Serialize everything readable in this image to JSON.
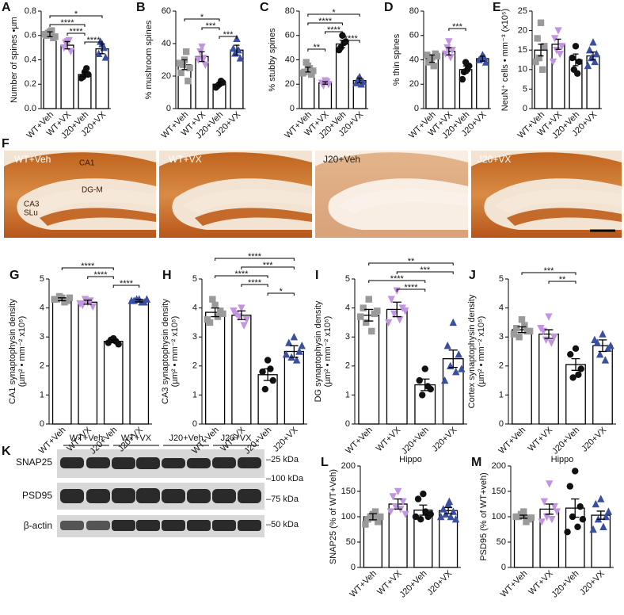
{
  "style": {
    "colors": [
      "#9a9a9a",
      "#c394e0",
      "#111111",
      "#3a4fa0"
    ],
    "markers": [
      "square",
      "triangle-down",
      "circle",
      "triangle"
    ]
  },
  "chart_data": [
    {
      "type": "bar",
      "panel": "A",
      "ylabel": [
        "Number of spines •µm"
      ],
      "categories": [
        "WT+Veh",
        "WT+VX",
        "J20+Veh",
        "J20+VX"
      ],
      "values": [
        0.61,
        0.52,
        0.28,
        0.49
      ],
      "errors": [
        0.02,
        0.03,
        0.02,
        0.04
      ],
      "points": [
        [
          0.63,
          0.6,
          0.58,
          0.62,
          0.64,
          0.61,
          0.59
        ],
        [
          0.55,
          0.5,
          0.47,
          0.54,
          0.56
        ],
        [
          0.3,
          0.25,
          0.28,
          0.26,
          0.33
        ],
        [
          0.53,
          0.45,
          0.42,
          0.55,
          0.5
        ]
      ],
      "ylim": [
        0,
        0.8
      ],
      "yticks": [
        {
          "value": 0,
          "label": "0.0"
        },
        0.2,
        0.4,
        0.6,
        0.8
      ],
      "brackets": [
        {
          "between": [
            0,
            3
          ],
          "label": "*"
        },
        {
          "between": [
            0,
            2
          ],
          "label": "****"
        },
        {
          "between": [
            1,
            2
          ],
          "label": "****"
        },
        {
          "between": [
            2,
            3
          ],
          "label": "****"
        }
      ]
    },
    {
      "type": "bar",
      "panel": "B",
      "ylabel": [
        "% mushroom spines"
      ],
      "categories": [
        "WT+Veh",
        "WT+VX",
        "J20+Veh",
        "J20+VX"
      ],
      "values": [
        27,
        32,
        15,
        36
      ],
      "errors": [
        3,
        3,
        1,
        3
      ],
      "points": [
        [
          30,
          22,
          17,
          27,
          35,
          28,
          25
        ],
        [
          38,
          30,
          27,
          35,
          31
        ],
        [
          15,
          13,
          16,
          14,
          17
        ],
        [
          43,
          37,
          31,
          34,
          36
        ]
      ],
      "ylim": [
        0,
        60
      ],
      "yticks": [
        0,
        20,
        40,
        60
      ],
      "brackets": [
        {
          "between": [
            0,
            2
          ],
          "label": "*"
        },
        {
          "between": [
            1,
            2
          ],
          "label": "***"
        },
        {
          "between": [
            2,
            3
          ],
          "label": "***"
        }
      ]
    },
    {
      "type": "bar",
      "panel": "C",
      "ylabel": [
        "% stubby spines"
      ],
      "categories": [
        "WT+Veh",
        "WT+VX",
        "J20+Veh",
        "J20+VX"
      ],
      "values": [
        32,
        21,
        53,
        23
      ],
      "errors": [
        2,
        1,
        3,
        2
      ],
      "points": [
        [
          35,
          30,
          28,
          38,
          33,
          29,
          31
        ],
        [
          23,
          21,
          20,
          19,
          22
        ],
        [
          60,
          48,
          55,
          50,
          54
        ],
        [
          26,
          21,
          22,
          24,
          20
        ]
      ],
      "ylim": [
        0,
        80
      ],
      "yticks": [
        0,
        20,
        40,
        60,
        80
      ],
      "brackets": [
        {
          "between": [
            0,
            3
          ],
          "label": "*"
        },
        {
          "between": [
            0,
            2
          ],
          "label": "****"
        },
        {
          "between": [
            1,
            2
          ],
          "label": "****"
        },
        {
          "between": [
            2,
            3
          ],
          "label": "****"
        },
        {
          "between": [
            0,
            1
          ],
          "label": "**"
        }
      ]
    },
    {
      "type": "bar",
      "panel": "D",
      "ylabel": [
        "% thin spines"
      ],
      "categories": [
        "WT+Veh",
        "WT+VX",
        "J20+Veh",
        "J20+VX"
      ],
      "values": [
        41,
        47,
        32,
        41
      ],
      "errors": [
        3,
        3,
        3,
        2
      ],
      "points": [
        [
          42,
          38,
          45,
          40,
          35,
          44,
          43
        ],
        [
          55,
          45,
          48,
          50,
          42
        ],
        [
          38,
          24,
          35,
          30,
          32
        ],
        [
          44,
          40,
          38,
          41,
          42
        ]
      ],
      "ylim": [
        0,
        80
      ],
      "yticks": [
        0,
        20,
        40,
        60,
        80
      ],
      "brackets": [
        {
          "between": [
            1,
            2
          ],
          "label": "***"
        }
      ]
    },
    {
      "type": "bar",
      "panel": "E",
      "ylabel": [
        "NeuN⁺ cells • mm⁻³ (x10⁵)"
      ],
      "categories": [
        "WT+Veh",
        "WT+VX",
        "J20+Veh",
        "J20+VX"
      ],
      "values": [
        15,
        16.5,
        12.5,
        13.5
      ],
      "errors": [
        1.5,
        1.3,
        1.5,
        1
      ],
      "points": [
        [
          22,
          18,
          16,
          13,
          10,
          12
        ],
        [
          20,
          18,
          16,
          15,
          14,
          12
        ],
        [
          16,
          13,
          12,
          10,
          9
        ],
        [
          17,
          15,
          14,
          13,
          12,
          11
        ]
      ],
      "ylim": [
        0,
        25
      ],
      "yticks": [
        0,
        5,
        10,
        15,
        20,
        25
      ],
      "brackets": []
    },
    {
      "type": "bar",
      "panel": "G",
      "ylabel": [
        "CA1 synaptophysin density",
        "(µm² • mm⁻² x10⁵)"
      ],
      "categories": [
        "WT+Veh",
        "WT+VX",
        "J20+Veh",
        "J20+VX"
      ],
      "values": [
        4.3,
        4.2,
        2.85,
        4.25
      ],
      "errors": [
        0.05,
        0.07,
        0.05,
        0.04
      ],
      "points": [
        [
          4.35,
          4.3,
          4.25,
          4.4,
          4.2,
          4.3,
          4.35
        ],
        [
          4.2,
          4.1,
          4.05,
          4.3,
          4.25,
          4.15
        ],
        [
          2.95,
          2.8,
          2.75,
          2.9,
          2.85
        ],
        [
          4.3,
          4.25,
          4.2,
          4.3,
          4.2,
          4.25,
          4.3
        ]
      ],
      "ylim": [
        0,
        5
      ],
      "yticks": [
        0,
        1,
        2,
        3,
        4,
        5
      ],
      "brackets": [
        {
          "between": [
            0,
            2
          ],
          "label": "****"
        },
        {
          "between": [
            1,
            2
          ],
          "label": "****"
        },
        {
          "between": [
            2,
            3
          ],
          "label": "****"
        }
      ]
    },
    {
      "type": "bar",
      "panel": "H",
      "ylabel": [
        "CA3 synaptophysin density",
        "(µm² • mm⁻² x10⁵)"
      ],
      "categories": [
        "WT+Veh",
        "WT+VX",
        "J20+Veh",
        "J20+VX"
      ],
      "values": [
        3.85,
        3.75,
        1.7,
        2.5
      ],
      "errors": [
        0.15,
        0.15,
        0.2,
        0.2
      ],
      "points": [
        [
          4.1,
          3.5,
          3.9,
          4.3,
          3.7,
          3.6,
          3.8
        ],
        [
          4.0,
          3.8,
          3.6,
          3.7,
          3.4,
          3.9
        ],
        [
          2.2,
          1.8,
          1.5,
          1.2,
          1.9
        ],
        [
          3.0,
          2.8,
          2.5,
          2.3,
          2.2,
          2.4,
          2.7
        ]
      ],
      "ylim": [
        0,
        5
      ],
      "yticks": [
        0,
        1,
        2,
        3,
        4,
        5
      ],
      "brackets": [
        {
          "between": [
            0,
            3
          ],
          "label": "****"
        },
        {
          "between": [
            1,
            3
          ],
          "label": "***"
        },
        {
          "between": [
            0,
            2
          ],
          "label": "****"
        },
        {
          "between": [
            1,
            2
          ],
          "label": "****"
        },
        {
          "between": [
            2,
            3
          ],
          "label": "*"
        }
      ]
    },
    {
      "type": "bar",
      "panel": "I",
      "ylabel": [
        "DG synaptophysin density",
        "(µm² • mm⁻² x10⁵)"
      ],
      "categories": [
        "WT+Veh",
        "WT+VX",
        "J20+Veh",
        "J20+VX"
      ],
      "values": [
        3.75,
        3.95,
        1.35,
        2.25
      ],
      "errors": [
        0.2,
        0.25,
        0.2,
        0.3
      ],
      "points": [
        [
          4.3,
          4.0,
          3.8,
          3.5,
          3.2,
          3.7,
          3.9
        ],
        [
          4.6,
          4.3,
          4.0,
          3.8,
          3.6,
          3.5,
          3.9
        ],
        [
          1.9,
          1.5,
          1.2,
          1.0,
          1.3
        ],
        [
          3.5,
          2.7,
          2.4,
          2.0,
          1.8,
          1.5,
          1.9
        ]
      ],
      "ylim": [
        0,
        5
      ],
      "yticks": [
        0,
        1,
        2,
        3,
        4,
        5
      ],
      "brackets": [
        {
          "between": [
            0,
            3
          ],
          "label": "**"
        },
        {
          "between": [
            1,
            3
          ],
          "label": "***"
        },
        {
          "between": [
            0,
            2
          ],
          "label": "****"
        },
        {
          "between": [
            1,
            2
          ],
          "label": "****"
        }
      ]
    },
    {
      "type": "bar",
      "panel": "J",
      "ylabel": [
        "Cortex synaptophysin density",
        "(µm² • mm⁻² x10⁵)"
      ],
      "categories": [
        "WT+Veh",
        "WT+VX",
        "J20+Veh",
        "J20+VX"
      ],
      "values": [
        3.25,
        3.1,
        2.05,
        2.7
      ],
      "errors": [
        0.1,
        0.15,
        0.2,
        0.2
      ],
      "points": [
        [
          3.6,
          3.3,
          3.2,
          3.0,
          3.4,
          3.1,
          3.2
        ],
        [
          3.7,
          3.2,
          3.0,
          2.9,
          2.8,
          3.3
        ],
        [
          2.6,
          2.4,
          1.9,
          1.6,
          1.7
        ],
        [
          3.1,
          2.8,
          2.6,
          2.4,
          2.2,
          2.9,
          2.7
        ]
      ],
      "ylim": [
        0,
        5
      ],
      "yticks": [
        0,
        1,
        2,
        3,
        4,
        5
      ],
      "brackets": [
        {
          "between": [
            0,
            2
          ],
          "label": "***"
        },
        {
          "between": [
            1,
            2
          ],
          "label": "**"
        }
      ]
    },
    {
      "type": "bar",
      "panel": "L",
      "title": "Hippo",
      "ylabel": [
        "SNAP25 (% of WT+Veh)"
      ],
      "categories": [
        "WT+Veh",
        "WT+VX",
        "J20+Veh",
        "J20+VX"
      ],
      "values": [
        100,
        125,
        113,
        112
      ],
      "errors": [
        6,
        10,
        10,
        6
      ],
      "points": [
        [
          105,
          95,
          90,
          100,
          110,
          85,
          100,
          98
        ],
        [
          150,
          140,
          130,
          120,
          115,
          110,
          105
        ],
        [
          145,
          135,
          100,
          95,
          110,
          100,
          105
        ],
        [
          125,
          115,
          110,
          105,
          100,
          100,
          95,
          130
        ]
      ],
      "ylim": [
        0,
        200
      ],
      "yticks": [
        0,
        50,
        100,
        150,
        200
      ],
      "brackets": []
    },
    {
      "type": "bar",
      "panel": "M",
      "title": "Hippo",
      "ylabel": [
        "PSD95 (% of WT+veh)"
      ],
      "categories": [
        "WT+Veh",
        "WT+VX",
        "J20+Veh",
        "J20+VX"
      ],
      "values": [
        100,
        115,
        117,
        103
      ],
      "errors": [
        3,
        10,
        18,
        8
      ],
      "points": [
        [
          110,
          100,
          95,
          105,
          90,
          100,
          98
        ],
        [
          165,
          130,
          120,
          100,
          95,
          90,
          110
        ],
        [
          190,
          160,
          120,
          100,
          80,
          70,
          95
        ],
        [
          135,
          125,
          100,
          95,
          80,
          75,
          110
        ]
      ],
      "ylim": [
        0,
        200
      ],
      "yticks": [
        0,
        50,
        100,
        150,
        200
      ],
      "brackets": []
    }
  ],
  "histology": {
    "panel": "F",
    "labels": [
      "WT+Veh",
      "WT+VX",
      "J20+Veh",
      "J20+VX"
    ],
    "regions": [
      "CA1",
      "CA3",
      "SLu",
      "DG-M"
    ]
  },
  "blot": {
    "panel": "K",
    "groups": [
      "WT+Veh",
      "WT+VX",
      "J20+Veh",
      "J20+VX"
    ],
    "rows": [
      "SNAP25",
      "PSD95",
      "β-actin"
    ],
    "markers": [
      "–25 kDa",
      "–100 kDa",
      "–75 kDa",
      "–50 kDa"
    ]
  }
}
